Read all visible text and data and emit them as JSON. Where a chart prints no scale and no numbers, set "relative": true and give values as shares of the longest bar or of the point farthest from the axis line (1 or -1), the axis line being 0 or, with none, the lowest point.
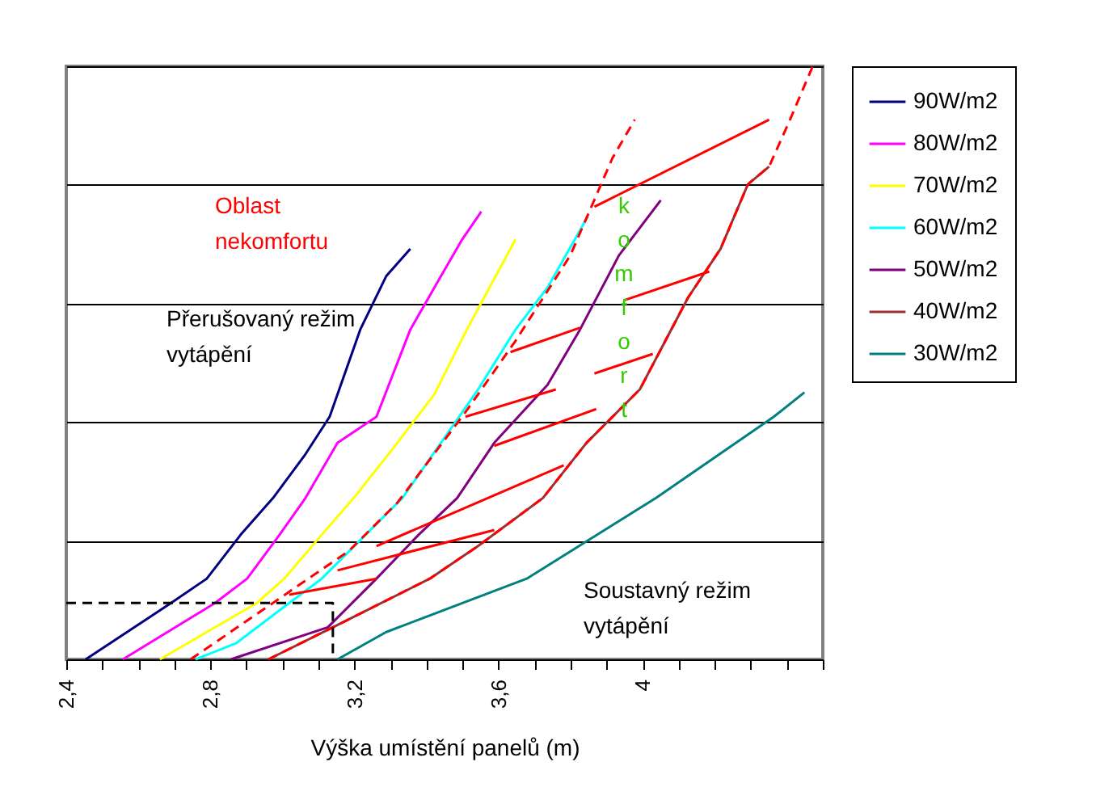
{
  "chart_data": {
    "type": "line",
    "relative": true,
    "xlabel": "Výška umístění panelů (m)",
    "xlim": [
      2.4,
      4.5
    ],
    "xticks": [
      {
        "value": 2.4,
        "label": "2,4"
      },
      {
        "value": 2.5,
        "label": null
      },
      {
        "value": 2.6,
        "label": null
      },
      {
        "value": 2.7,
        "label": null
      },
      {
        "value": 2.8,
        "label": "2,8"
      },
      {
        "value": 2.9,
        "label": null
      },
      {
        "value": 3.0,
        "label": null
      },
      {
        "value": 3.1,
        "label": null
      },
      {
        "value": 3.2,
        "label": "3,2"
      },
      {
        "value": 3.3,
        "label": null
      },
      {
        "value": 3.4,
        "label": null
      },
      {
        "value": 3.5,
        "label": null
      },
      {
        "value": 3.6,
        "label": "3,6"
      },
      {
        "value": 3.7,
        "label": null
      },
      {
        "value": 3.8,
        "label": null
      },
      {
        "value": 3.9,
        "label": null
      },
      {
        "value": 4,
        "label": "4"
      },
      {
        "value": 4.1,
        "label": null
      },
      {
        "value": 4.2,
        "label": null
      },
      {
        "value": 4.3,
        "label": null
      },
      {
        "value": 4.4,
        "label": null
      },
      {
        "value": 4.5,
        "label": null
      }
    ],
    "grid": "y",
    "legend": "right",
    "annotations": [
      "Oblast nekomfortu",
      "Přerušovaný režim vytápění",
      "Soustavný režim vytápění",
      "komfort"
    ],
    "series": [
      {
        "name": "90W/m2",
        "color": "#000080",
        "x": [
          2.454,
          2.691,
          2.79,
          2.884,
          2.974,
          3.064,
          3.131,
          3.216,
          3.288,
          3.355
        ],
        "values": [
          0,
          0.095,
          0.136,
          0.21,
          0.272,
          0.346,
          0.409,
          0.556,
          0.646,
          0.692
        ]
      },
      {
        "name": "80W/m2",
        "color": "#ff00ff",
        "x": [
          2.557,
          2.813,
          2.902,
          2.992,
          3.064,
          3.153,
          3.261,
          3.355,
          3.44,
          3.499,
          3.552
        ],
        "values": [
          0,
          0.095,
          0.136,
          0.21,
          0.272,
          0.365,
          0.409,
          0.556,
          0.646,
          0.708,
          0.755
        ]
      },
      {
        "name": "70W/m2",
        "color": "#ffff00",
        "x": [
          2.66,
          2.929,
          3.005,
          3.109,
          3.198,
          3.319,
          3.422,
          3.512,
          3.575,
          3.647
        ],
        "values": [
          0,
          0.095,
          0.136,
          0.21,
          0.272,
          0.365,
          0.447,
          0.556,
          0.627,
          0.708
        ]
      },
      {
        "name": "60W/m2",
        "color": "#00ffff",
        "x": [
          2.759,
          2.871,
          3.019,
          3.109,
          3.333,
          3.44,
          3.543,
          3.647,
          3.736,
          3.848
        ],
        "values": [
          0,
          0.027,
          0.095,
          0.136,
          0.272,
          0.365,
          0.455,
          0.556,
          0.627,
          0.747
        ]
      },
      {
        "name": "50W/m2",
        "color": "#800080",
        "x": [
          2.857,
          3.126,
          3.261,
          3.378,
          3.485,
          3.588,
          3.736,
          3.826,
          3.934,
          4.05
        ],
        "values": [
          0,
          0.054,
          0.136,
          0.21,
          0.272,
          0.365,
          0.463,
          0.556,
          0.681,
          0.774
        ]
      },
      {
        "name": "40W/m2",
        "color": "#993333",
        "x": [
          2.961,
          3.14,
          3.409,
          3.543,
          3.723,
          3.844,
          3.992,
          4.126,
          4.216,
          4.292,
          4.351
        ],
        "values": [
          0,
          0.054,
          0.136,
          0.191,
          0.272,
          0.365,
          0.455,
          0.61,
          0.692,
          0.801,
          0.831
        ]
      },
      {
        "name": "30W/m2",
        "color": "#008080",
        "x": [
          3.153,
          3.288,
          3.678,
          4.037,
          4.364,
          4.449
        ],
        "values": [
          0,
          0.046,
          0.136,
          0.272,
          0.409,
          0.45
        ]
      },
      {
        "color": "#ff0000",
        "line_style": "dashed",
        "x": [
          2.745,
          3.185,
          3.319,
          3.512,
          3.647,
          3.799,
          3.916,
          3.978
        ],
        "values": [
          0,
          0.183,
          0.264,
          0.42,
          0.537,
          0.681,
          0.845,
          0.91
        ]
      },
      {
        "color": "#ff0000",
        "line_style": "dashed",
        "x": [
          2.961,
          3.14,
          3.409,
          3.543,
          3.723,
          3.844,
          3.992,
          4.126,
          4.216,
          4.292,
          4.351,
          4.409,
          4.472
        ],
        "values": [
          0,
          0.054,
          0.136,
          0.191,
          0.272,
          0.365,
          0.455,
          0.61,
          0.692,
          0.801,
          0.831,
          0.91,
          1
        ]
      },
      {
        "color": "#000000",
        "line_style": "dashed",
        "x": [
          2.4,
          3.14,
          3.14
        ],
        "values": [
          0.095,
          0.095,
          0
        ]
      },
      {
        "color": "#ff0000",
        "x": [
          3.866,
          4.351
        ],
        "values": [
          0.763,
          0.91
        ]
      },
      {
        "color": "#ff0000",
        "x": [
          3.947,
          4.185
        ],
        "values": [
          0.605,
          0.654
        ]
      },
      {
        "color": "#ff0000",
        "x": [
          3.633,
          3.826
        ],
        "values": [
          0.518,
          0.559
        ]
      },
      {
        "color": "#ff0000",
        "x": [
          3.866,
          4.028
        ],
        "values": [
          0.482,
          0.515
        ]
      },
      {
        "color": "#ff0000",
        "x": [
          3.508,
          3.759
        ],
        "values": [
          0.409,
          0.455
        ]
      },
      {
        "color": "#ff0000",
        "x": [
          3.588,
          3.871
        ],
        "values": [
          0.36,
          0.422
        ]
      },
      {
        "color": "#ff0000",
        "x": [
          3.261,
          3.781
        ],
        "values": [
          0.191,
          0.327
        ]
      },
      {
        "color": "#ff0000",
        "x": [
          3.153,
          3.588
        ],
        "values": [
          0.15,
          0.218
        ]
      },
      {
        "color": "#ff0000",
        "x": [
          3.019,
          3.261
        ],
        "values": [
          0.109,
          0.136
        ]
      }
    ]
  }
}
